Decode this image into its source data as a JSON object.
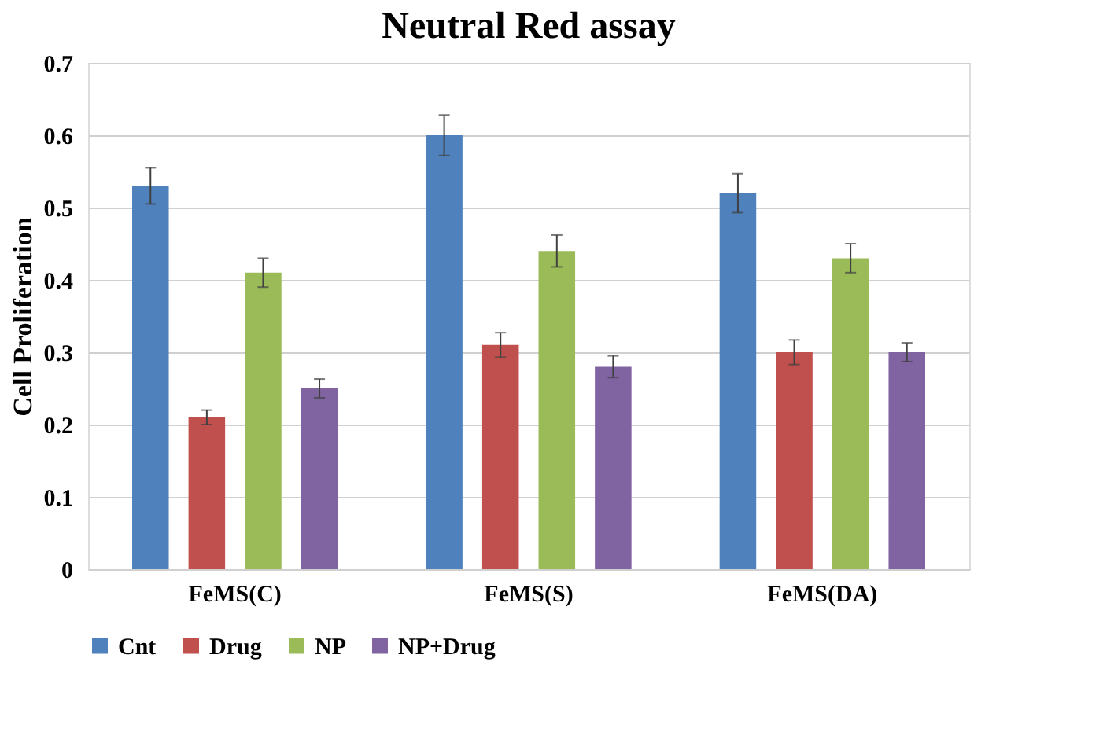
{
  "chart_data": {
    "type": "bar",
    "title": "Neutral Red assay",
    "ylabel": "Cell Proliferation",
    "categories": [
      "FeMS(C)",
      "FeMS(S)",
      "FeMS(DA)"
    ],
    "series": [
      {
        "name": "Cnt",
        "color": "#4f81bd",
        "values": [
          0.53,
          0.6,
          0.52
        ],
        "errors": [
          0.025,
          0.028,
          0.027
        ]
      },
      {
        "name": "Drug",
        "color": "#c0504d",
        "values": [
          0.21,
          0.31,
          0.3
        ],
        "errors": [
          0.01,
          0.017,
          0.017
        ]
      },
      {
        "name": "NP",
        "color": "#9bbb59",
        "values": [
          0.41,
          0.44,
          0.43
        ],
        "errors": [
          0.02,
          0.022,
          0.02
        ]
      },
      {
        "name": "NP+Drug",
        "color": "#8064a2",
        "values": [
          0.25,
          0.28,
          0.3
        ],
        "errors": [
          0.013,
          0.015,
          0.013
        ]
      }
    ],
    "ylim": [
      0,
      0.7
    ],
    "yticks": [
      0,
      0.1,
      0.2,
      0.3,
      0.4,
      0.5,
      0.6,
      0.7
    ],
    "grid": "y",
    "legend": "bottom"
  }
}
